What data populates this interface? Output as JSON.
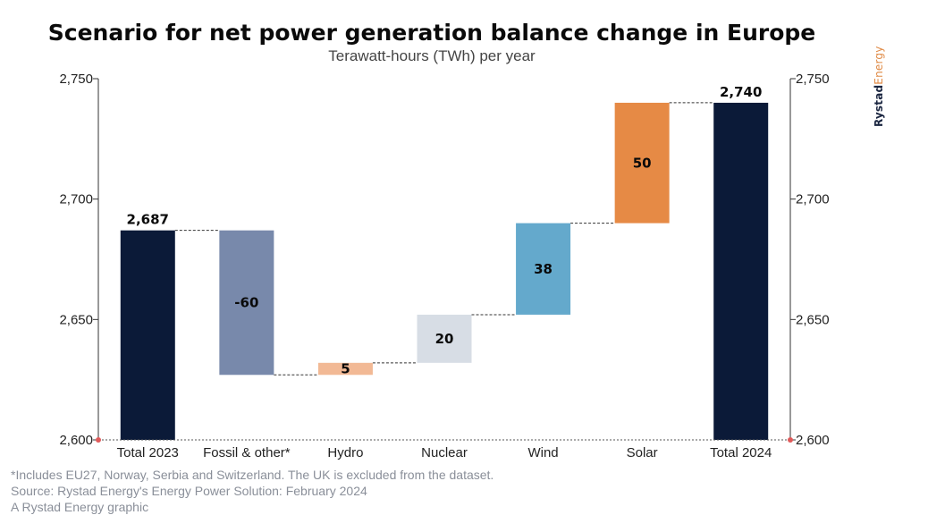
{
  "title": "Scenario for net power generation balance change in Europe",
  "subtitle": "Terawatt-hours (TWh) per year",
  "brand": {
    "part1": "Rystad",
    "part2": "Energy"
  },
  "notes": [
    "*Includes EU27, Norway, Serbia and Switzerland. The UK is excluded from the dataset.",
    "Source: Rystad Energy's Energy Power Solution: February 2024",
    "A Rystad Energy graphic"
  ],
  "chart_data": {
    "type": "bar",
    "subtype": "waterfall",
    "categories": [
      "Total 2023",
      "Fossil & other*",
      "Hydro",
      "Nuclear",
      "Wind",
      "Solar",
      "Total 2024"
    ],
    "steps": [
      {
        "kind": "total",
        "value": 2687,
        "label": "2,687",
        "color": "#0b1a38"
      },
      {
        "kind": "delta",
        "value": -60,
        "label": "-60",
        "color": "#7889ab"
      },
      {
        "kind": "delta",
        "value": 5,
        "label": "5",
        "color": "#f2b995"
      },
      {
        "kind": "delta",
        "value": 20,
        "label": "20",
        "color": "#d7dde5"
      },
      {
        "kind": "delta",
        "value": 38,
        "label": "38",
        "color": "#64a9cc"
      },
      {
        "kind": "delta",
        "value": 50,
        "label": "50",
        "color": "#e68a45"
      },
      {
        "kind": "total",
        "value": 2740,
        "label": "2,740",
        "color": "#0b1a38"
      }
    ],
    "ylim": [
      2600,
      2750
    ],
    "yticks": [
      2600,
      2650,
      2700,
      2750
    ],
    "ytick_labels": [
      "2,600",
      "2,650",
      "2,700",
      "2,750"
    ],
    "secondary_axis": true,
    "connector_lines": "dashed",
    "baseline_color": "#e05a5a"
  }
}
